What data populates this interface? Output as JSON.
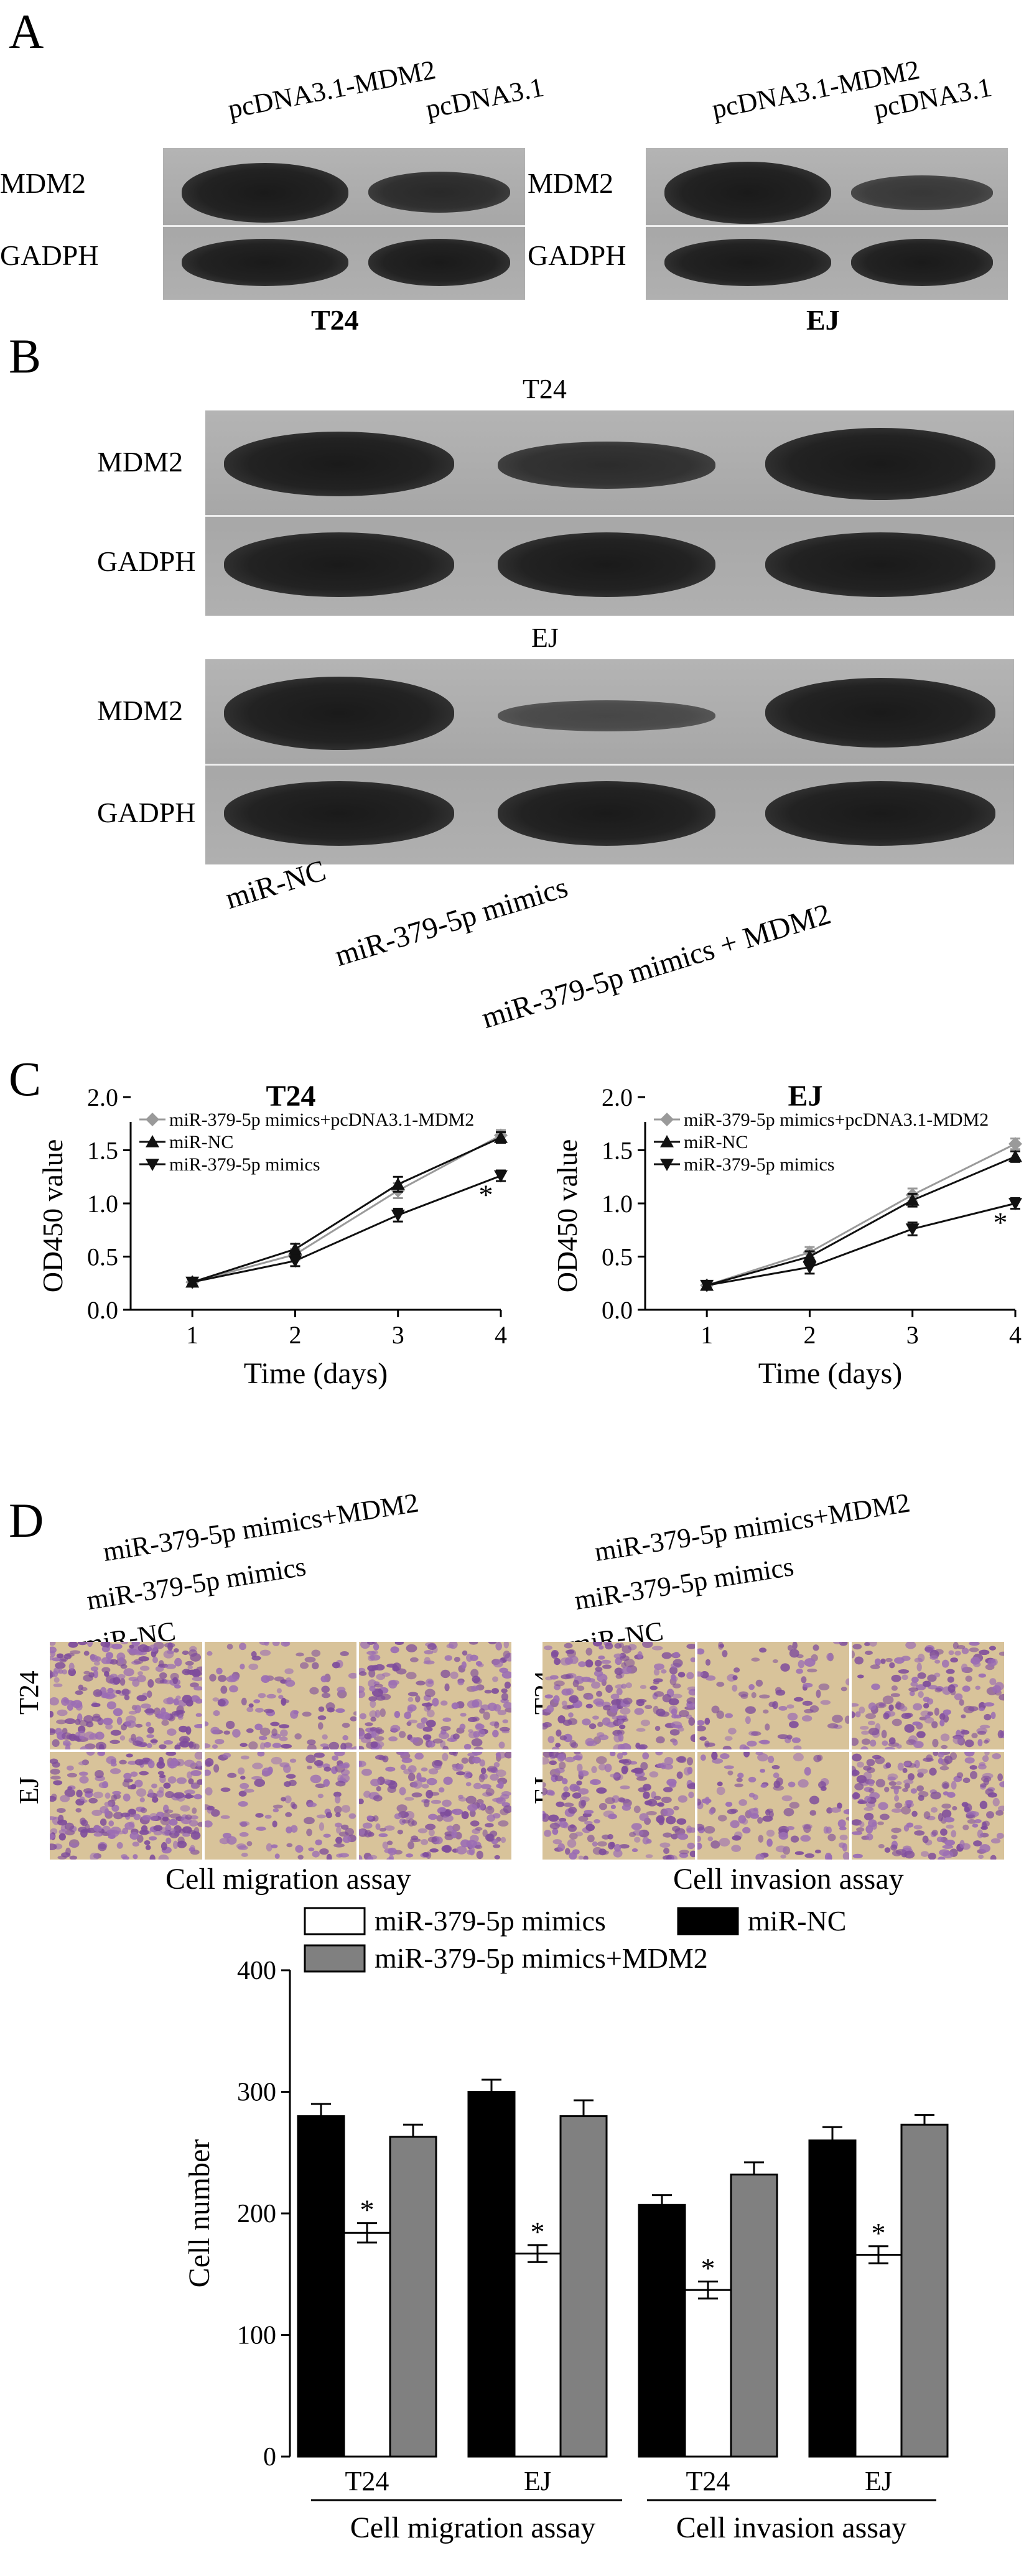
{
  "panelA": {
    "letter": "A",
    "blot_left": {
      "lanes": [
        "pcDNA3.1-MDM2",
        "pcDNA3.1"
      ],
      "rows": [
        "MDM2",
        "GADPH"
      ],
      "cell_line": "T24"
    },
    "blot_right": {
      "lanes": [
        "pcDNA3.1-MDM2",
        "pcDNA3.1"
      ],
      "rows": [
        "MDM2",
        "GADPH"
      ],
      "cell_line": "EJ"
    }
  },
  "panelB": {
    "letter": "B",
    "blocks": [
      {
        "title": "T24",
        "rows": [
          "MDM2",
          "GADPH"
        ]
      },
      {
        "title": "EJ",
        "rows": [
          "MDM2",
          "GADPH"
        ]
      }
    ],
    "lanes": [
      "miR-NC",
      "miR-379-5p mimics",
      "miR-379-5p mimics + MDM2"
    ]
  },
  "panelC": {
    "letter": "C",
    "charts": [
      {
        "title": "T24",
        "ylabel": "OD450 value",
        "xlabel": "Time (days)",
        "ylim": [
          0.0,
          2.0
        ],
        "yticks": [
          "0.0",
          "0.5",
          "1.0",
          "1.5",
          "2.0"
        ],
        "xticks": [
          "1",
          "2",
          "3",
          "4"
        ],
        "legend": [
          "miR-379-5p mimics+pcDNA3.1-MDM2",
          "miR-NC",
          "miR-379-5p mimics"
        ],
        "star": "*"
      },
      {
        "title": "EJ",
        "ylabel": "OD450 value",
        "xlabel": "Time (days)",
        "ylim": [
          0.0,
          2.0
        ],
        "yticks": [
          "0.0",
          "0.5",
          "1.0",
          "1.5",
          "2.0"
        ],
        "xticks": [
          "1",
          "2",
          "3",
          "4"
        ],
        "legend": [
          "miR-379-5p mimics+pcDNA3.1-MDM2",
          "miR-NC",
          "miR-379-5p mimics"
        ],
        "star": "*"
      }
    ]
  },
  "panelD": {
    "letter": "D",
    "left": {
      "labels": [
        "miR-379-5p mimics+MDM2",
        "miR-379-5p mimics",
        "miR-NC"
      ],
      "rows": [
        "T24",
        "EJ"
      ],
      "caption": "Cell migration assay"
    },
    "right": {
      "labels": [
        "miR-379-5p mimics+MDM2",
        "miR-379-5p mimics",
        "miR-NC"
      ],
      "rows": [
        "T24",
        "EJ"
      ],
      "caption": "Cell invasion assay"
    }
  },
  "chart_data": [
    {
      "type": "line",
      "title": "T24",
      "xlabel": "Time (days)",
      "ylabel": "OD450 value",
      "x": [
        1,
        2,
        3,
        4
      ],
      "ylim": [
        0.0,
        2.0
      ],
      "series": [
        {
          "name": "miR-379-5p mimics+pcDNA3.1-MDM2",
          "values": [
            0.26,
            0.52,
            1.12,
            1.64
          ],
          "errors": [
            0.03,
            0.05,
            0.07,
            0.05
          ],
          "color": "#9a9a9a",
          "marker": "diamond"
        },
        {
          "name": "miR-NC",
          "values": [
            0.26,
            0.57,
            1.18,
            1.62
          ],
          "errors": [
            0.03,
            0.05,
            0.07,
            0.05
          ],
          "color": "#111111",
          "marker": "triangle-up"
        },
        {
          "name": "miR-379-5p mimics",
          "values": [
            0.26,
            0.46,
            0.89,
            1.26
          ],
          "errors": [
            0.03,
            0.05,
            0.06,
            0.05
          ],
          "color": "#111111",
          "marker": "triangle-down"
        }
      ]
    },
    {
      "type": "line",
      "title": "EJ",
      "xlabel": "Time (days)",
      "ylabel": "OD450 value",
      "x": [
        1,
        2,
        3,
        4
      ],
      "ylim": [
        0.0,
        2.0
      ],
      "series": [
        {
          "name": "miR-379-5p mimics+pcDNA3.1-MDM2",
          "values": [
            0.23,
            0.54,
            1.08,
            1.56
          ],
          "errors": [
            0.03,
            0.05,
            0.06,
            0.05
          ],
          "color": "#9a9a9a",
          "marker": "diamond"
        },
        {
          "name": "miR-NC",
          "values": [
            0.23,
            0.5,
            1.03,
            1.44
          ],
          "errors": [
            0.03,
            0.05,
            0.06,
            0.05
          ],
          "color": "#111111",
          "marker": "triangle-up"
        },
        {
          "name": "miR-379-5p mimics",
          "values": [
            0.23,
            0.4,
            0.76,
            1.0
          ],
          "errors": [
            0.03,
            0.06,
            0.06,
            0.05
          ],
          "color": "#111111",
          "marker": "triangle-down"
        }
      ]
    },
    {
      "type": "bar",
      "ylabel": "Cell number",
      "ylim": [
        0,
        400
      ],
      "yticks": [
        "0",
        "100",
        "200",
        "300",
        "400"
      ],
      "categories": [
        "T24",
        "EJ",
        "T24",
        "EJ"
      ],
      "groups": [
        "Cell migration assay",
        "Cell invasion assay"
      ],
      "legend": [
        "miR-379-5p mimics",
        "miR-NC",
        "miR-379-5p mimics+MDM2"
      ],
      "star": "*",
      "series": [
        {
          "name": "miR-NC",
          "values": [
            280,
            300,
            207,
            260
          ],
          "errors": [
            10,
            10,
            8,
            11
          ],
          "color": "#000000"
        },
        {
          "name": "miR-379-5p mimics",
          "values": [
            184,
            167,
            137,
            166
          ],
          "errors": [
            8,
            7,
            7,
            7
          ],
          "color": "#ffffff"
        },
        {
          "name": "miR-379-5p mimics+MDM2",
          "values": [
            263,
            280,
            232,
            273
          ],
          "errors": [
            10,
            13,
            10,
            8
          ],
          "color": "#808080"
        }
      ]
    }
  ]
}
